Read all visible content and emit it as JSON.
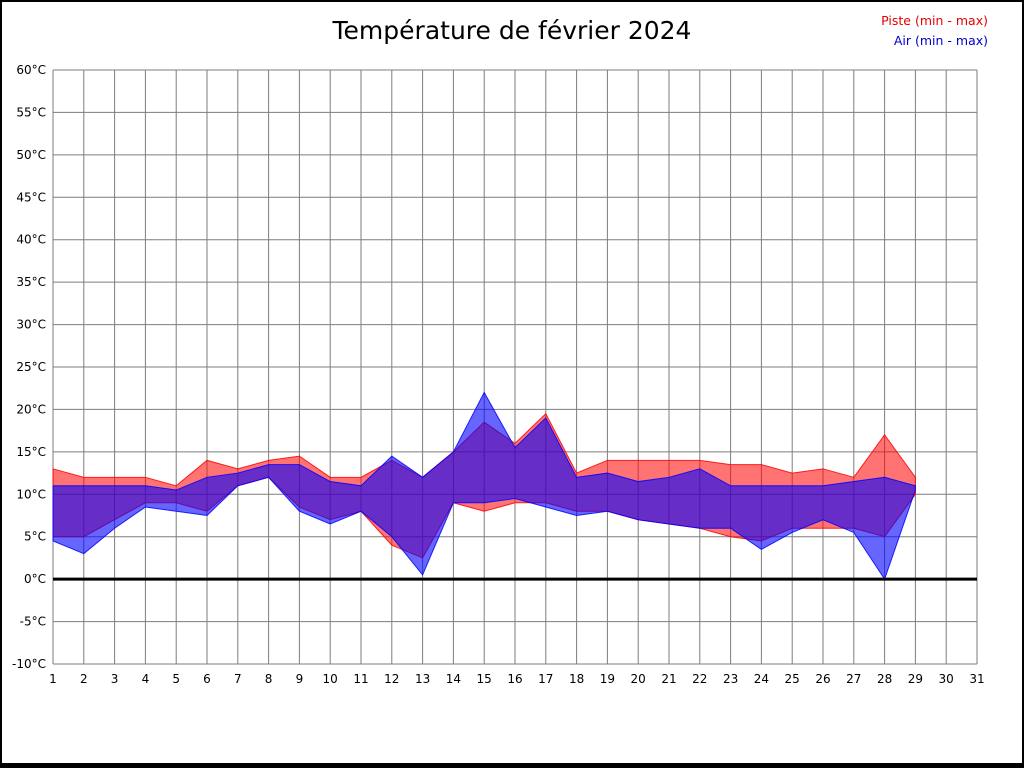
{
  "title": "Température de février 2024",
  "legend": [
    {
      "label": "Piste (min - max)",
      "color": "#e60000"
    },
    {
      "label": "Air (min - max)",
      "color": "#0000cc"
    }
  ],
  "chart_data": {
    "type": "area",
    "title": "Température de février 2024",
    "subtitle": "",
    "xlabel": "",
    "ylabel": "",
    "xlim": [
      1,
      31
    ],
    "ylim": [
      -10,
      60
    ],
    "grid": true,
    "legend_position": "top-right",
    "zero_line": 0,
    "x_ticks": [
      1,
      2,
      3,
      4,
      5,
      6,
      7,
      8,
      9,
      10,
      11,
      12,
      13,
      14,
      15,
      16,
      17,
      18,
      19,
      20,
      21,
      22,
      23,
      24,
      25,
      26,
      27,
      28,
      29,
      30,
      31
    ],
    "y_ticks": [
      {
        "value": 60,
        "label": "60°C"
      },
      {
        "value": 55,
        "label": "55°C"
      },
      {
        "value": 50,
        "label": "50°C"
      },
      {
        "value": 45,
        "label": "45°C"
      },
      {
        "value": 40,
        "label": "40°C"
      },
      {
        "value": 35,
        "label": "35°C"
      },
      {
        "value": 30,
        "label": "30°C"
      },
      {
        "value": 25,
        "label": "25°C"
      },
      {
        "value": 20,
        "label": "20°C"
      },
      {
        "value": 15,
        "label": "15°C"
      },
      {
        "value": 10,
        "label": "10°C"
      },
      {
        "value": 5,
        "label": "5°C"
      },
      {
        "value": 0,
        "label": "0°C"
      },
      {
        "value": -5,
        "label": "-5°C"
      },
      {
        "value": -10,
        "label": "-10°C"
      }
    ],
    "days": [
      1,
      2,
      3,
      4,
      5,
      6,
      7,
      8,
      9,
      10,
      11,
      12,
      13,
      14,
      15,
      16,
      17,
      18,
      19,
      20,
      21,
      22,
      23,
      24,
      25,
      26,
      27,
      28,
      29
    ],
    "series": [
      {
        "name": "Piste (min - max)",
        "fill": "rgba(255,0,0,0.55)",
        "stroke": "rgba(255,0,0,0.85)",
        "min": [
          5,
          5,
          7,
          9,
          9,
          8,
          11,
          12,
          8.5,
          7,
          8,
          4,
          2.5,
          9,
          8,
          9,
          9,
          8,
          8,
          7,
          6.5,
          6,
          5,
          4.5,
          6,
          6,
          6,
          5,
          10
        ],
        "max": [
          13,
          12,
          12,
          12,
          11,
          14,
          13,
          14,
          14.5,
          12,
          12,
          14,
          12,
          15,
          18.5,
          16,
          19.5,
          12.5,
          14,
          14,
          14,
          14,
          13.5,
          13.5,
          12.5,
          13,
          12,
          17,
          12
        ]
      },
      {
        "name": "Air (min - max)",
        "fill": "rgba(0,0,255,0.6)",
        "stroke": "rgba(0,0,255,0.85)",
        "min": [
          4.5,
          3,
          6,
          8.5,
          8,
          7.5,
          11,
          12,
          8,
          6.5,
          8,
          5,
          0.5,
          9,
          9,
          9.5,
          8.5,
          7.5,
          8,
          7,
          6.5,
          6,
          6,
          3.5,
          5.5,
          7,
          5.5,
          0,
          10.5
        ],
        "max": [
          11,
          11,
          11,
          11,
          10.5,
          12,
          12.5,
          13.5,
          13.5,
          11.5,
          11,
          14.5,
          12,
          15,
          22,
          15.5,
          19,
          12,
          12.5,
          11.5,
          12,
          13,
          11,
          11,
          11,
          11,
          11.5,
          12,
          11
        ]
      }
    ]
  }
}
